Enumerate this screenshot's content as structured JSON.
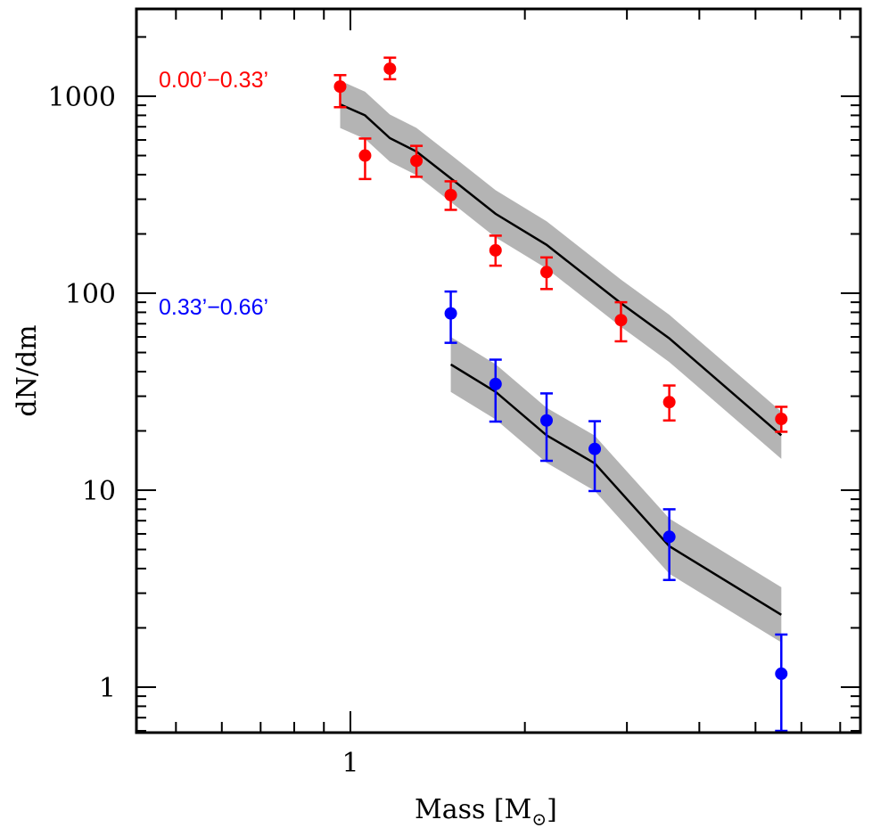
{
  "chart_data": {
    "type": "scatter",
    "title": "",
    "xlabel": "Mass [M⊙]",
    "xlabel_text": "Mass [M",
    "xlabel_sub": "⊙",
    "xlabel_close": "]",
    "ylabel": "dN/dm",
    "xscale": "log",
    "yscale": "log",
    "xlim": [
      0.43,
      10.2
    ],
    "ylim": [
      0.6,
      2700
    ],
    "x_ticks": [
      {
        "value": 1,
        "label": "1"
      }
    ],
    "x_minor_ticks": [
      0.5,
      0.6,
      0.7,
      0.8,
      0.9,
      2,
      3,
      4,
      5,
      6,
      7,
      8,
      9
    ],
    "y_ticks": [
      {
        "value": 1,
        "label": "1"
      },
      {
        "value": 10,
        "label": "10"
      },
      {
        "value": 100,
        "label": "100"
      },
      {
        "value": 1000,
        "label": "1000"
      }
    ],
    "grid": false,
    "series": [
      {
        "name": "0.00’−0.33’",
        "color": "#ff0000",
        "label_position": "top-left",
        "points": [
          {
            "x": 0.96,
            "y": 1120,
            "lo": 880,
            "hi": 1280
          },
          {
            "x": 1.06,
            "y": 500,
            "lo": 380,
            "hi": 610
          },
          {
            "x": 1.17,
            "y": 1380,
            "lo": 1220,
            "hi": 1570
          },
          {
            "x": 1.3,
            "y": 470,
            "lo": 390,
            "hi": 560
          },
          {
            "x": 1.49,
            "y": 315,
            "lo": 265,
            "hi": 370
          },
          {
            "x": 1.78,
            "y": 165,
            "lo": 138,
            "hi": 196
          },
          {
            "x": 2.18,
            "y": 128,
            "lo": 105,
            "hi": 152
          },
          {
            "x": 2.93,
            "y": 73,
            "lo": 57,
            "hi": 90
          },
          {
            "x": 3.55,
            "y": 28,
            "lo": 22.6,
            "hi": 34
          },
          {
            "x": 5.54,
            "y": 23,
            "lo": 19.8,
            "hi": 26.5
          }
        ],
        "model": {
          "color": "#000000",
          "band_color": "#b4b4b4",
          "band_dex": 0.12,
          "points": [
            {
              "x": 0.96,
              "y": 910
            },
            {
              "x": 1.06,
              "y": 800
            },
            {
              "x": 1.17,
              "y": 613
            },
            {
              "x": 1.3,
              "y": 524
            },
            {
              "x": 1.49,
              "y": 383
            },
            {
              "x": 1.78,
              "y": 253
            },
            {
              "x": 2.18,
              "y": 176
            },
            {
              "x": 2.93,
              "y": 89
            },
            {
              "x": 3.55,
              "y": 59
            },
            {
              "x": 5.54,
              "y": 19
            }
          ]
        }
      },
      {
        "name": "0.33’−0.66’",
        "color": "#0000ff",
        "label_position": "middle-left",
        "points": [
          {
            "x": 1.49,
            "y": 79,
            "lo": 56,
            "hi": 102
          },
          {
            "x": 1.78,
            "y": 34.6,
            "lo": 22.3,
            "hi": 46
          },
          {
            "x": 2.18,
            "y": 22.6,
            "lo": 14.1,
            "hi": 31
          },
          {
            "x": 2.64,
            "y": 16.2,
            "lo": 9.9,
            "hi": 22.4
          },
          {
            "x": 3.55,
            "y": 5.8,
            "lo": 3.5,
            "hi": 8.0
          },
          {
            "x": 5.54,
            "y": 1.17,
            "lo": 0.6,
            "hi": 1.85
          }
        ],
        "model": {
          "color": "#000000",
          "band_color": "#b4b4b4",
          "band_dex": 0.14,
          "points": [
            {
              "x": 1.49,
              "y": 43.5
            },
            {
              "x": 1.78,
              "y": 31.6
            },
            {
              "x": 2.18,
              "y": 19
            },
            {
              "x": 2.64,
              "y": 13.7
            },
            {
              "x": 3.55,
              "y": 5.2
            },
            {
              "x": 5.54,
              "y": 2.33
            }
          ]
        }
      }
    ]
  }
}
